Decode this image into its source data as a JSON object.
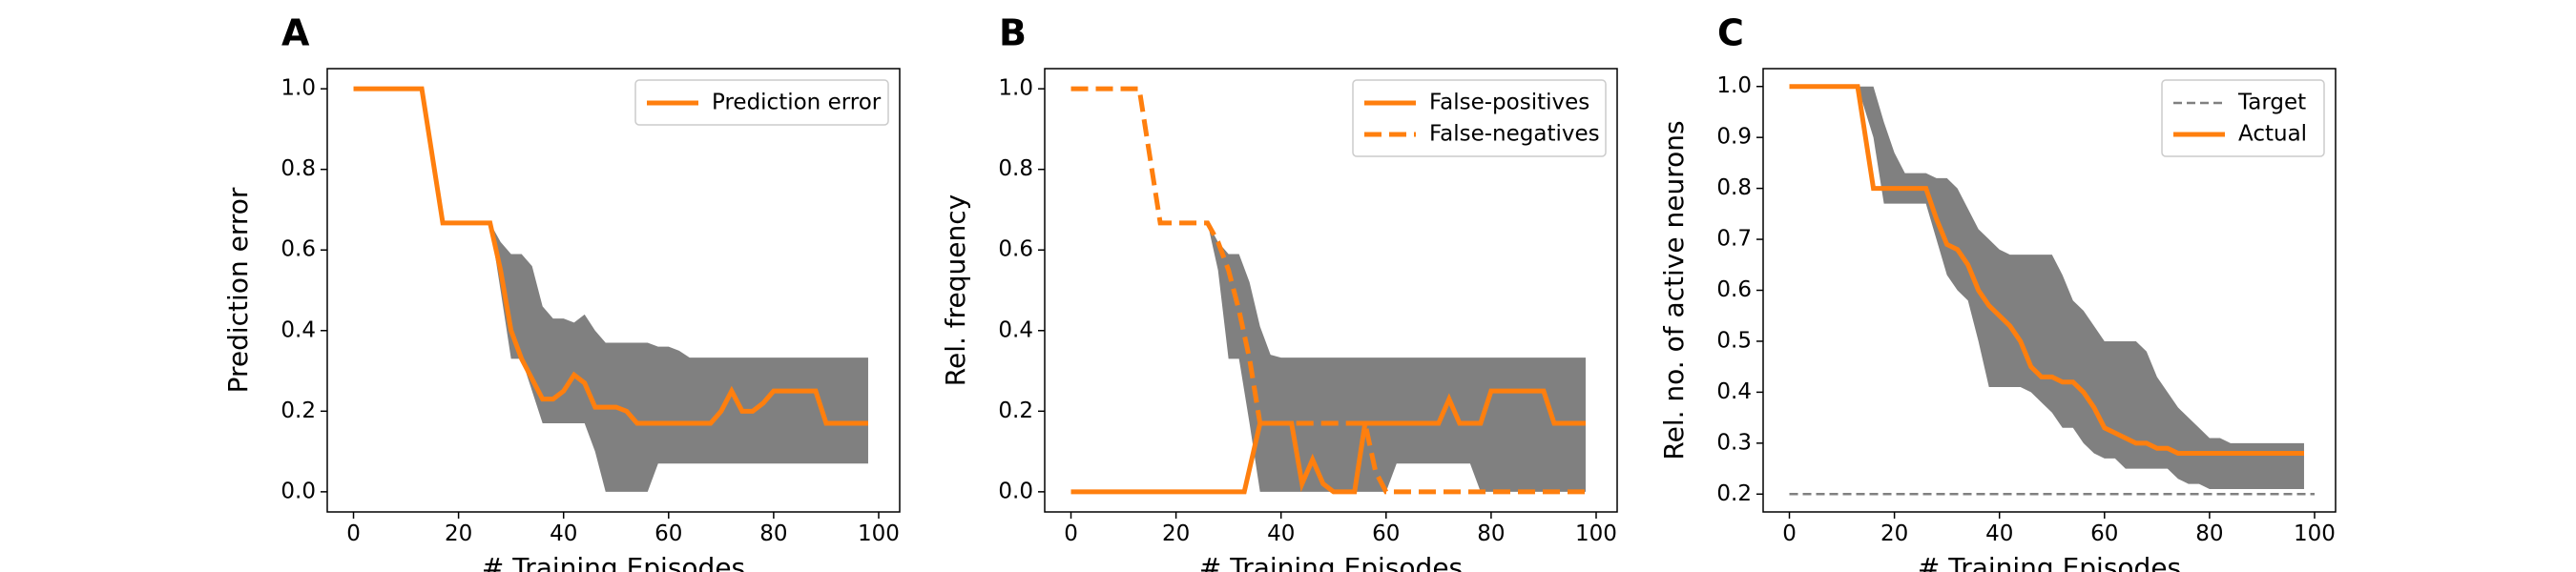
{
  "chart_data": [
    {
      "panel": "A",
      "type": "line",
      "xlabel": "# Training Episodes",
      "ylabel": "Prediction error",
      "xlim": [
        -5,
        104
      ],
      "ylim": [
        -0.05,
        1.05
      ],
      "xticks": [
        0,
        20,
        40,
        60,
        80,
        100
      ],
      "yticks": [
        0.0,
        0.2,
        0.4,
        0.6,
        0.8,
        1.0
      ],
      "ytick_labels": [
        "0.0",
        "0.2",
        "0.4",
        "0.6",
        "0.8",
        "1.0"
      ],
      "legend_position": "top-right",
      "band": {
        "color": "#808080",
        "x": [
          26,
          28,
          30,
          32,
          34,
          36,
          38,
          40,
          42,
          44,
          46,
          48,
          50,
          52,
          54,
          56,
          58,
          60,
          62,
          64,
          66,
          68,
          70,
          72,
          74,
          76,
          78,
          80,
          82,
          84,
          86,
          88,
          90,
          92,
          94,
          96,
          98
        ],
        "upper": [
          0.667,
          0.62,
          0.59,
          0.59,
          0.56,
          0.46,
          0.43,
          0.43,
          0.42,
          0.44,
          0.4,
          0.37,
          0.37,
          0.37,
          0.37,
          0.37,
          0.36,
          0.36,
          0.35,
          0.333,
          0.333,
          0.333,
          0.333,
          0.333,
          0.333,
          0.333,
          0.333,
          0.333,
          0.333,
          0.333,
          0.333,
          0.333,
          0.333,
          0.333,
          0.333,
          0.333,
          0.333
        ],
        "lower": [
          0.667,
          0.5,
          0.33,
          0.33,
          0.25,
          0.17,
          0.17,
          0.17,
          0.17,
          0.17,
          0.1,
          0.0,
          0.0,
          0.0,
          0.0,
          0.0,
          0.07,
          0.07,
          0.07,
          0.07,
          0.07,
          0.07,
          0.07,
          0.07,
          0.07,
          0.07,
          0.07,
          0.07,
          0.07,
          0.07,
          0.07,
          0.07,
          0.07,
          0.07,
          0.07,
          0.07,
          0.07
        ]
      },
      "series": [
        {
          "name": "Prediction error",
          "color": "#ff7f0e",
          "style": "solid",
          "x": [
            0,
            13,
            17,
            26,
            28,
            30,
            32,
            34,
            36,
            38,
            40,
            42,
            44,
            46,
            48,
            50,
            52,
            54,
            56,
            58,
            60,
            62,
            64,
            66,
            68,
            70,
            72,
            74,
            76,
            78,
            80,
            82,
            84,
            86,
            88,
            90,
            92,
            94,
            96,
            98
          ],
          "y": [
            1.0,
            1.0,
            0.667,
            0.667,
            0.55,
            0.4,
            0.33,
            0.28,
            0.23,
            0.23,
            0.25,
            0.29,
            0.27,
            0.21,
            0.21,
            0.21,
            0.2,
            0.17,
            0.17,
            0.17,
            0.17,
            0.17,
            0.17,
            0.17,
            0.17,
            0.2,
            0.25,
            0.2,
            0.2,
            0.22,
            0.25,
            0.25,
            0.25,
            0.25,
            0.25,
            0.17,
            0.17,
            0.17,
            0.17,
            0.17
          ]
        }
      ]
    },
    {
      "panel": "B",
      "type": "line",
      "xlabel": "# Training Episodes",
      "ylabel": "Rel. frequency",
      "xlim": [
        -5,
        104
      ],
      "ylim": [
        -0.05,
        1.05
      ],
      "xticks": [
        0,
        20,
        40,
        60,
        80,
        100
      ],
      "yticks": [
        0.0,
        0.2,
        0.4,
        0.6,
        0.8,
        1.0
      ],
      "ytick_labels": [
        "0.0",
        "0.2",
        "0.4",
        "0.6",
        "0.8",
        "1.0"
      ],
      "legend_position": "top-right",
      "band": {
        "color": "#808080",
        "x": [
          26,
          28,
          30,
          32,
          34,
          36,
          38,
          40,
          42,
          44,
          46,
          48,
          50,
          52,
          54,
          56,
          58,
          60,
          62,
          64,
          66,
          68,
          70,
          72,
          74,
          76,
          78,
          80,
          82,
          84,
          86,
          88,
          90,
          92,
          94,
          96,
          98
        ],
        "upper": [
          0.667,
          0.62,
          0.59,
          0.59,
          0.52,
          0.41,
          0.34,
          0.333,
          0.333,
          0.333,
          0.333,
          0.333,
          0.333,
          0.333,
          0.333,
          0.333,
          0.333,
          0.333,
          0.333,
          0.333,
          0.333,
          0.333,
          0.333,
          0.333,
          0.333,
          0.333,
          0.333,
          0.333,
          0.333,
          0.333,
          0.333,
          0.333,
          0.333,
          0.333,
          0.333,
          0.333,
          0.333
        ],
        "lower": [
          0.667,
          0.55,
          0.33,
          0.33,
          0.17,
          0.0,
          0.0,
          0.0,
          0.0,
          0.0,
          0.0,
          0.0,
          0.0,
          0.0,
          0.0,
          0.0,
          0.0,
          0.0,
          0.07,
          0.07,
          0.07,
          0.07,
          0.07,
          0.07,
          0.07,
          0.07,
          0.0,
          0.0,
          0.0,
          0.0,
          0.0,
          0.0,
          0.0,
          0.0,
          0.0,
          0.0,
          0.0
        ]
      },
      "series": [
        {
          "name": "False-positives",
          "color": "#ff7f0e",
          "style": "solid",
          "x": [
            0,
            20,
            33,
            36,
            38,
            40,
            42,
            44,
            46,
            48,
            50,
            52,
            54,
            56,
            58,
            60,
            62,
            64,
            66,
            68,
            70,
            72,
            74,
            76,
            78,
            80,
            82,
            84,
            86,
            88,
            90,
            92,
            94,
            96,
            98
          ],
          "y": [
            0.0,
            0.0,
            0.0,
            0.17,
            0.17,
            0.17,
            0.17,
            0.02,
            0.08,
            0.02,
            0.0,
            0.0,
            0.0,
            0.17,
            0.17,
            0.17,
            0.17,
            0.17,
            0.17,
            0.17,
            0.17,
            0.23,
            0.17,
            0.17,
            0.17,
            0.25,
            0.25,
            0.25,
            0.25,
            0.25,
            0.25,
            0.17,
            0.17,
            0.17,
            0.17
          ]
        },
        {
          "name": "False-negatives",
          "color": "#ff7f0e",
          "style": "dashed",
          "x": [
            0,
            13,
            17,
            26,
            28,
            30,
            32,
            34,
            36,
            38,
            40,
            44,
            50,
            56,
            58,
            60,
            62,
            70,
            80,
            90,
            98
          ],
          "y": [
            1.0,
            1.0,
            0.667,
            0.667,
            0.62,
            0.55,
            0.45,
            0.33,
            0.17,
            0.17,
            0.17,
            0.17,
            0.17,
            0.17,
            0.05,
            0.0,
            0.0,
            0.0,
            0.0,
            0.0,
            0.0
          ]
        }
      ]
    },
    {
      "panel": "C",
      "type": "line",
      "xlabel": "# Training Episodes",
      "ylabel": "Rel. no. of active neurons",
      "xlim": [
        -5,
        104
      ],
      "ylim": [
        0.165,
        1.035
      ],
      "xticks": [
        0,
        20,
        40,
        60,
        80,
        100
      ],
      "yticks": [
        0.2,
        0.3,
        0.4,
        0.5,
        0.6,
        0.7,
        0.8,
        0.9,
        1.0
      ],
      "ytick_labels": [
        "0.2",
        "0.3",
        "0.4",
        "0.5",
        "0.6",
        "0.7",
        "0.8",
        "0.9",
        "1.0"
      ],
      "legend_position": "top-right",
      "band": {
        "color": "#808080",
        "x": [
          13,
          16,
          18,
          20,
          22,
          24,
          26,
          28,
          30,
          32,
          34,
          36,
          38,
          40,
          42,
          44,
          46,
          48,
          50,
          52,
          54,
          56,
          58,
          60,
          62,
          64,
          66,
          68,
          70,
          72,
          74,
          76,
          78,
          80,
          82,
          84,
          86,
          88,
          90,
          92,
          94,
          96,
          98
        ],
        "upper": [
          1.0,
          1.0,
          0.93,
          0.87,
          0.83,
          0.83,
          0.83,
          0.82,
          0.82,
          0.8,
          0.76,
          0.72,
          0.7,
          0.68,
          0.67,
          0.67,
          0.67,
          0.67,
          0.67,
          0.63,
          0.58,
          0.56,
          0.53,
          0.5,
          0.5,
          0.5,
          0.5,
          0.48,
          0.43,
          0.4,
          0.37,
          0.35,
          0.33,
          0.31,
          0.31,
          0.3,
          0.3,
          0.3,
          0.3,
          0.3,
          0.3,
          0.3,
          0.3
        ],
        "lower": [
          1.0,
          0.9,
          0.77,
          0.77,
          0.77,
          0.77,
          0.77,
          0.7,
          0.63,
          0.6,
          0.58,
          0.5,
          0.41,
          0.41,
          0.41,
          0.41,
          0.4,
          0.38,
          0.36,
          0.33,
          0.33,
          0.3,
          0.28,
          0.27,
          0.27,
          0.25,
          0.25,
          0.25,
          0.25,
          0.25,
          0.23,
          0.22,
          0.22,
          0.21,
          0.21,
          0.21,
          0.21,
          0.21,
          0.21,
          0.21,
          0.21,
          0.21,
          0.21
        ]
      },
      "series": [
        {
          "name": "Target",
          "color": "#808080",
          "style": "dashed",
          "x": [
            0,
            100
          ],
          "y": [
            0.2,
            0.2
          ]
        },
        {
          "name": "Actual",
          "color": "#ff7f0e",
          "style": "solid",
          "x": [
            0,
            13,
            16,
            20,
            24,
            26,
            28,
            30,
            32,
            34,
            36,
            38,
            40,
            42,
            44,
            46,
            48,
            50,
            52,
            54,
            56,
            58,
            60,
            62,
            64,
            66,
            68,
            70,
            72,
            74,
            76,
            78,
            80,
            82,
            84,
            86,
            88,
            90,
            92,
            94,
            96,
            98
          ],
          "y": [
            1.0,
            1.0,
            0.8,
            0.8,
            0.8,
            0.8,
            0.74,
            0.69,
            0.68,
            0.65,
            0.6,
            0.57,
            0.55,
            0.53,
            0.5,
            0.45,
            0.43,
            0.43,
            0.42,
            0.42,
            0.4,
            0.37,
            0.33,
            0.32,
            0.31,
            0.3,
            0.3,
            0.29,
            0.29,
            0.28,
            0.28,
            0.28,
            0.28,
            0.28,
            0.28,
            0.28,
            0.28,
            0.28,
            0.28,
            0.28,
            0.28,
            0.28
          ]
        }
      ]
    }
  ]
}
